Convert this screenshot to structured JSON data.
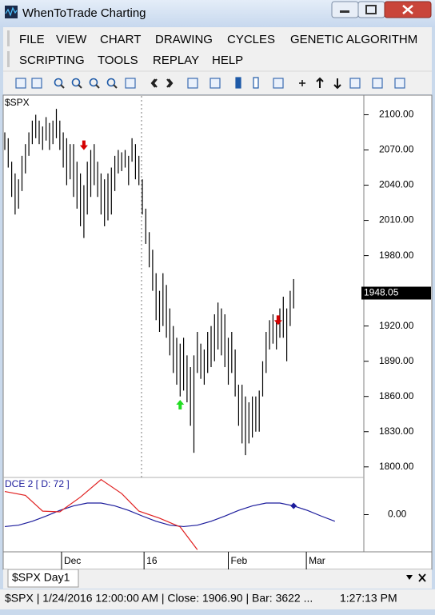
{
  "window": {
    "title": "WhenToTrade Charting"
  },
  "menu": {
    "items": [
      "FILE",
      "VIEW",
      "CHART",
      "DRAWING",
      "CYCLES",
      "GENETIC ALGORITHM",
      "SCRIPTING",
      "TOOLS",
      "REPLAY",
      "HELP"
    ]
  },
  "chart_data": {
    "type": "ohlc",
    "symbol": "$SPX",
    "color": "#000000",
    "high": [
      2085,
      2080,
      2060,
      2050,
      2045,
      2065,
      2075,
      2085,
      2095,
      2100,
      2095,
      2090,
      2098,
      2093,
      2095,
      2105,
      2095,
      2085,
      2080,
      2075,
      2075,
      2060,
      2050,
      2040,
      2060,
      2070,
      2075,
      2060,
      2050,
      2045,
      2050,
      2055,
      2065,
      2070,
      2068,
      2070,
      2065,
      2080,
      2075,
      2065,
      2045,
      2020,
      2000,
      1985,
      1965,
      1950,
      1965,
      1955,
      1935,
      1920,
      1910,
      1905,
      1910,
      1895,
      1885,
      1895,
      1915,
      1905,
      1900,
      1915,
      1920,
      1930,
      1940,
      1935,
      1930,
      1910,
      1915,
      1900,
      1870,
      1870,
      1860,
      1855,
      1860,
      1860,
      1865,
      1890,
      1915,
      1925,
      1930,
      1925,
      1935,
      1945,
      1935,
      1950,
      1960
    ],
    "low": [
      2070,
      2055,
      2030,
      2015,
      2020,
      2035,
      2050,
      2065,
      2075,
      2080,
      2075,
      2070,
      2078,
      2070,
      2075,
      2080,
      2070,
      2055,
      2040,
      2045,
      2030,
      2020,
      2005,
      1995,
      2015,
      2030,
      2040,
      2030,
      2015,
      2005,
      2010,
      2015,
      2035,
      2050,
      2052,
      2055,
      2040,
      2060,
      2045,
      2040,
      2015,
      1990,
      1970,
      1950,
      1925,
      1915,
      1920,
      1910,
      1895,
      1880,
      1870,
      1860,
      1865,
      1855,
      1835,
      1812,
      1880,
      1875,
      1870,
      1880,
      1885,
      1890,
      1900,
      1895,
      1885,
      1870,
      1880,
      1860,
      1835,
      1820,
      1810,
      1820,
      1825,
      1830,
      1830,
      1860,
      1880,
      1900,
      1905,
      1900,
      1910,
      1910,
      1890,
      1920,
      1935
    ],
    "ylim": [
      1791,
      2116
    ],
    "yticks": [
      {
        "value": 1800,
        "label": "1800.00"
      },
      {
        "value": 1830,
        "label": "1830.00"
      },
      {
        "value": 1860,
        "label": "1860.00"
      },
      {
        "value": 1890,
        "label": "1890.00"
      },
      {
        "value": 1920,
        "label": "1920.00"
      },
      {
        "value": 1950,
        "label": "1950.00"
      },
      {
        "value": 1980,
        "label": "1980.00"
      },
      {
        "value": 2010,
        "label": "2010.00"
      },
      {
        "value": 2040,
        "label": "2040.00"
      },
      {
        "value": 2070,
        "label": "2070.00"
      },
      {
        "value": 2100,
        "label": "2100.00"
      }
    ],
    "xticks": [
      {
        "value": 16.5,
        "label": "Dec"
      },
      {
        "value": 40.5,
        "label": "16"
      },
      {
        "value": 65,
        "label": "Feb"
      },
      {
        "value": 87.7,
        "label": "Mar"
      }
    ],
    "last_price": 1948.05,
    "signals": [
      {
        "x": 23,
        "value": 2074,
        "direction": "down",
        "color": "#d40000"
      },
      {
        "x": 51,
        "value": 1853,
        "direction": "up",
        "color": "#22dd22"
      },
      {
        "x": 79.5,
        "value": 1925,
        "direction": "down",
        "color": "#d40000"
      }
    ],
    "indicator": {
      "title": "DCE 2 [ D: 72 ]",
      "ylim": [
        -1.06,
        1.06
      ],
      "yticks": [
        {
          "value": 0,
          "label": "0.00"
        }
      ],
      "series": [
        {
          "color": "#1c1c9c",
          "x": [
            0,
            4,
            8,
            12,
            16,
            20,
            24,
            28,
            32,
            36,
            40,
            44,
            48,
            52,
            56,
            60,
            64,
            68,
            72,
            76,
            80,
            84,
            88,
            92,
            96
          ],
          "values": [
            -0.34,
            -0.3,
            -0.19,
            -0.04,
            0.12,
            0.25,
            0.33,
            0.33,
            0.25,
            0.12,
            -0.04,
            -0.19,
            -0.3,
            -0.34,
            -0.3,
            -0.19,
            -0.04,
            0.12,
            0.25,
            0.33,
            0.33,
            0.25,
            0.12,
            -0.04,
            -0.19
          ]
        },
        {
          "color": "#e02020",
          "x": [
            0,
            6,
            11,
            16,
            22,
            28,
            34,
            39,
            45,
            51,
            56
          ],
          "values": [
            0.66,
            0.55,
            0.1,
            0.08,
            0.5,
            1.0,
            0.6,
            0.1,
            -0.1,
            -0.35,
            -1.0
          ]
        }
      ],
      "marker": {
        "x": 84,
        "value": 0.25,
        "color": "#1c1c9c"
      }
    }
  },
  "tab": {
    "label": "$SPX Day1"
  },
  "status": {
    "info": "$SPX | 1/24/2016 12:00:00 AM | Close: 1906.90 | Bar: 3622 ...",
    "time": "1:27:13 PM"
  }
}
